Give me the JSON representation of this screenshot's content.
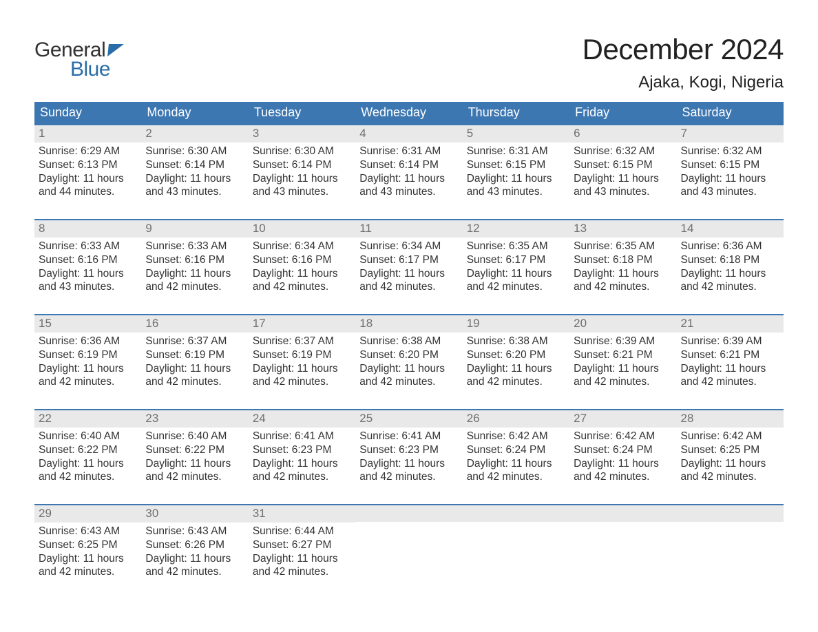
{
  "logo": {
    "word1": "General",
    "word2": "Blue"
  },
  "title": "December 2024",
  "location": "Ajaka, Kogi, Nigeria",
  "colors": {
    "header_bg": "#3d77b2",
    "header_text": "#ffffff",
    "daynum_bg": "#e9e9e9",
    "daynum_text": "#707070",
    "body_text": "#333333",
    "week_border": "#3d77b2",
    "logo_blue": "#2a6da6",
    "page_bg": "#ffffff"
  },
  "day_headers": [
    "Sunday",
    "Monday",
    "Tuesday",
    "Wednesday",
    "Thursday",
    "Friday",
    "Saturday"
  ],
  "labels": {
    "sunrise": "Sunrise:",
    "sunset": "Sunset:",
    "daylight": "Daylight:"
  },
  "weeks": [
    [
      {
        "n": "1",
        "sunrise": "6:29 AM",
        "sunset": "6:13 PM",
        "daylight": "11 hours and 44 minutes."
      },
      {
        "n": "2",
        "sunrise": "6:30 AM",
        "sunset": "6:14 PM",
        "daylight": "11 hours and 43 minutes."
      },
      {
        "n": "3",
        "sunrise": "6:30 AM",
        "sunset": "6:14 PM",
        "daylight": "11 hours and 43 minutes."
      },
      {
        "n": "4",
        "sunrise": "6:31 AM",
        "sunset": "6:14 PM",
        "daylight": "11 hours and 43 minutes."
      },
      {
        "n": "5",
        "sunrise": "6:31 AM",
        "sunset": "6:15 PM",
        "daylight": "11 hours and 43 minutes."
      },
      {
        "n": "6",
        "sunrise": "6:32 AM",
        "sunset": "6:15 PM",
        "daylight": "11 hours and 43 minutes."
      },
      {
        "n": "7",
        "sunrise": "6:32 AM",
        "sunset": "6:15 PM",
        "daylight": "11 hours and 43 minutes."
      }
    ],
    [
      {
        "n": "8",
        "sunrise": "6:33 AM",
        "sunset": "6:16 PM",
        "daylight": "11 hours and 43 minutes."
      },
      {
        "n": "9",
        "sunrise": "6:33 AM",
        "sunset": "6:16 PM",
        "daylight": "11 hours and 42 minutes."
      },
      {
        "n": "10",
        "sunrise": "6:34 AM",
        "sunset": "6:16 PM",
        "daylight": "11 hours and 42 minutes."
      },
      {
        "n": "11",
        "sunrise": "6:34 AM",
        "sunset": "6:17 PM",
        "daylight": "11 hours and 42 minutes."
      },
      {
        "n": "12",
        "sunrise": "6:35 AM",
        "sunset": "6:17 PM",
        "daylight": "11 hours and 42 minutes."
      },
      {
        "n": "13",
        "sunrise": "6:35 AM",
        "sunset": "6:18 PM",
        "daylight": "11 hours and 42 minutes."
      },
      {
        "n": "14",
        "sunrise": "6:36 AM",
        "sunset": "6:18 PM",
        "daylight": "11 hours and 42 minutes."
      }
    ],
    [
      {
        "n": "15",
        "sunrise": "6:36 AM",
        "sunset": "6:19 PM",
        "daylight": "11 hours and 42 minutes."
      },
      {
        "n": "16",
        "sunrise": "6:37 AM",
        "sunset": "6:19 PM",
        "daylight": "11 hours and 42 minutes."
      },
      {
        "n": "17",
        "sunrise": "6:37 AM",
        "sunset": "6:19 PM",
        "daylight": "11 hours and 42 minutes."
      },
      {
        "n": "18",
        "sunrise": "6:38 AM",
        "sunset": "6:20 PM",
        "daylight": "11 hours and 42 minutes."
      },
      {
        "n": "19",
        "sunrise": "6:38 AM",
        "sunset": "6:20 PM",
        "daylight": "11 hours and 42 minutes."
      },
      {
        "n": "20",
        "sunrise": "6:39 AM",
        "sunset": "6:21 PM",
        "daylight": "11 hours and 42 minutes."
      },
      {
        "n": "21",
        "sunrise": "6:39 AM",
        "sunset": "6:21 PM",
        "daylight": "11 hours and 42 minutes."
      }
    ],
    [
      {
        "n": "22",
        "sunrise": "6:40 AM",
        "sunset": "6:22 PM",
        "daylight": "11 hours and 42 minutes."
      },
      {
        "n": "23",
        "sunrise": "6:40 AM",
        "sunset": "6:22 PM",
        "daylight": "11 hours and 42 minutes."
      },
      {
        "n": "24",
        "sunrise": "6:41 AM",
        "sunset": "6:23 PM",
        "daylight": "11 hours and 42 minutes."
      },
      {
        "n": "25",
        "sunrise": "6:41 AM",
        "sunset": "6:23 PM",
        "daylight": "11 hours and 42 minutes."
      },
      {
        "n": "26",
        "sunrise": "6:42 AM",
        "sunset": "6:24 PM",
        "daylight": "11 hours and 42 minutes."
      },
      {
        "n": "27",
        "sunrise": "6:42 AM",
        "sunset": "6:24 PM",
        "daylight": "11 hours and 42 minutes."
      },
      {
        "n": "28",
        "sunrise": "6:42 AM",
        "sunset": "6:25 PM",
        "daylight": "11 hours and 42 minutes."
      }
    ],
    [
      {
        "n": "29",
        "sunrise": "6:43 AM",
        "sunset": "6:25 PM",
        "daylight": "11 hours and 42 minutes."
      },
      {
        "n": "30",
        "sunrise": "6:43 AM",
        "sunset": "6:26 PM",
        "daylight": "11 hours and 42 minutes."
      },
      {
        "n": "31",
        "sunrise": "6:44 AM",
        "sunset": "6:27 PM",
        "daylight": "11 hours and 42 minutes."
      },
      null,
      null,
      null,
      null
    ]
  ]
}
